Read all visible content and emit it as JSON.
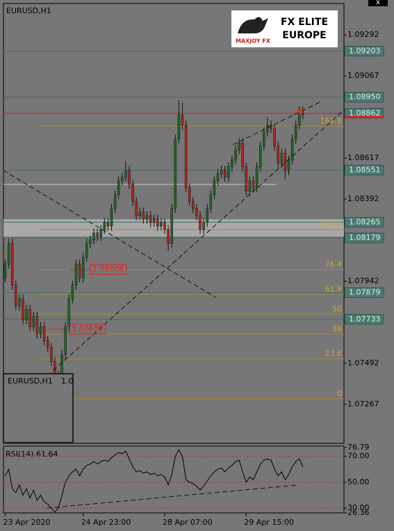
{
  "header": {
    "symbol": "EURUSD,H1",
    "logo_title": "FX ELITE",
    "logo_subtitle": "EUROPE",
    "logo_brand": "MAXJOY FX",
    "close": "x"
  },
  "inset": {
    "symbol": "EURUSD,H1",
    "value": "1.0"
  },
  "chart_data": [
    {
      "type": "candlestick",
      "up_color": "#1e6b2a",
      "down_color": "#b3261e",
      "ylim": [
        1.07053,
        1.09464
      ],
      "yticks": [
        1.09292,
        1.09067,
        1.08617,
        1.08392,
        1.07942,
        1.07492,
        1.07267
      ],
      "levels": [
        1.09203,
        1.0895,
        1.08862,
        1.08551,
        1.08265,
        1.08179,
        1.07879,
        1.07733
      ],
      "level_labels": [
        "1.09203",
        "1.08950",
        "1.08862",
        "1.08551",
        "1.08265",
        "1.08179",
        "1.07879",
        "1.07733"
      ],
      "bid": 1.08862,
      "price_tags": [
        1.08006,
        1.07679
      ],
      "fib": [
        {
          "label": "161.8",
          "price": 1.08792
        },
        {
          "label": "100.0",
          "price": 1.08224
        },
        {
          "label": "76.4",
          "price": 1.08005
        },
        {
          "label": "61.8",
          "price": 1.0787
        },
        {
          "label": "50",
          "price": 1.07761
        },
        {
          "label": "38",
          "price": 1.07652
        },
        {
          "label": "23.6",
          "price": 1.07516
        },
        {
          "label": "0",
          "price": 1.07298
        }
      ],
      "categories": [
        "23 Apr 2020",
        null,
        null,
        null,
        null,
        null,
        null,
        null,
        null,
        null,
        null,
        null,
        null,
        null,
        null,
        null,
        null,
        null,
        null,
        null,
        null,
        null,
        "24 Apr 23:00",
        null,
        null,
        null,
        null,
        null,
        null,
        null,
        null,
        null,
        null,
        null,
        null,
        null,
        null,
        null,
        null,
        null,
        null,
        null,
        null,
        null,
        null,
        "28 Apr 07:00",
        null,
        null,
        null,
        null,
        null,
        null,
        null,
        null,
        null,
        null,
        null,
        null,
        null,
        null,
        null,
        null,
        null,
        null,
        null,
        null,
        null,
        null,
        "29 Apr 15:00",
        null,
        null,
        null,
        null,
        null,
        null,
        null,
        null,
        null,
        null,
        null,
        null,
        null,
        null,
        null,
        null
      ],
      "ohlc": [
        [
          1.07959,
          1.0806,
          1.07934,
          1.08035
        ],
        [
          1.08035,
          1.08174,
          1.0801,
          1.08149
        ],
        [
          1.08149,
          1.08174,
          1.07895,
          1.0792
        ],
        [
          1.0792,
          1.07945,
          1.07781,
          1.07806
        ],
        [
          1.07806,
          1.07869,
          1.07781,
          1.07844
        ],
        [
          1.07844,
          1.07869,
          1.07705,
          1.0773
        ],
        [
          1.0773,
          1.07812,
          1.07705,
          1.07787
        ],
        [
          1.07787,
          1.07812,
          1.07667,
          1.07692
        ],
        [
          1.07692,
          1.07774,
          1.07667,
          1.07749
        ],
        [
          1.07749,
          1.07774,
          1.07629,
          1.07654
        ],
        [
          1.07654,
          1.07717,
          1.07629,
          1.07692
        ],
        [
          1.07692,
          1.07717,
          1.07591,
          1.07616
        ],
        [
          1.07616,
          1.07641,
          1.07553,
          1.07578
        ],
        [
          1.07578,
          1.07603,
          1.07476,
          1.07501
        ],
        [
          1.07501,
          1.07526,
          1.0733,
          1.07406
        ],
        [
          1.07406,
          1.0745,
          1.07381,
          1.07425
        ],
        [
          1.07425,
          1.07564,
          1.074,
          1.07539
        ],
        [
          1.07539,
          1.07717,
          1.07514,
          1.07692
        ],
        [
          1.07692,
          1.07869,
          1.07667,
          1.07844
        ],
        [
          1.07844,
          1.07945,
          1.07819,
          1.0792
        ],
        [
          1.0792,
          1.0806,
          1.07895,
          1.08035
        ],
        [
          1.08035,
          1.0806,
          1.07934,
          1.07959
        ],
        [
          1.07959,
          1.08098,
          1.07934,
          1.08073
        ],
        [
          1.08073,
          1.08174,
          1.08048,
          1.08149
        ],
        [
          1.08149,
          1.08193,
          1.08124,
          1.08168
        ],
        [
          1.08168,
          1.08231,
          1.08143,
          1.08206
        ],
        [
          1.08206,
          1.08231,
          1.08162,
          1.08187
        ],
        [
          1.08187,
          1.0825,
          1.08162,
          1.08225
        ],
        [
          1.08225,
          1.08288,
          1.082,
          1.08263
        ],
        [
          1.08263,
          1.08288,
          1.08219,
          1.08244
        ],
        [
          1.08244,
          1.08365,
          1.08219,
          1.0834
        ],
        [
          1.0834,
          1.08441,
          1.08315,
          1.08416
        ],
        [
          1.08416,
          1.08517,
          1.08391,
          1.08492
        ],
        [
          1.08492,
          1.08536,
          1.08467,
          1.08511
        ],
        [
          1.08511,
          1.086,
          1.08486,
          1.08549
        ],
        [
          1.08549,
          1.08574,
          1.08448,
          1.08473
        ],
        [
          1.08473,
          1.08498,
          1.08353,
          1.08378
        ],
        [
          1.08378,
          1.08403,
          1.08276,
          1.08301
        ],
        [
          1.08301,
          1.08345,
          1.08276,
          1.0832
        ],
        [
          1.0832,
          1.08345,
          1.08257,
          1.08282
        ],
        [
          1.08282,
          1.08326,
          1.08257,
          1.08301
        ],
        [
          1.08301,
          1.08326,
          1.08238,
          1.08263
        ],
        [
          1.08263,
          1.08307,
          1.08238,
          1.08282
        ],
        [
          1.08282,
          1.08307,
          1.08219,
          1.08244
        ],
        [
          1.08244,
          1.08288,
          1.08219,
          1.08263
        ],
        [
          1.08263,
          1.08288,
          1.082,
          1.08225
        ],
        [
          1.08225,
          1.0825,
          1.0811,
          1.08149
        ],
        [
          1.08149,
          1.08365,
          1.08124,
          1.0834
        ],
        [
          1.0834,
          1.08746,
          1.08315,
          1.08721
        ],
        [
          1.08721,
          1.0893,
          1.08696,
          1.08854
        ],
        [
          1.08854,
          1.0892,
          1.08772,
          1.08797
        ],
        [
          1.08797,
          1.08822,
          1.08429,
          1.08454
        ],
        [
          1.08454,
          1.08479,
          1.08353,
          1.08378
        ],
        [
          1.08378,
          1.08403,
          1.08315,
          1.0834
        ],
        [
          1.0834,
          1.08365,
          1.08276,
          1.08301
        ],
        [
          1.08301,
          1.08326,
          1.082,
          1.08225
        ],
        [
          1.08225,
          1.08288,
          1.082,
          1.08263
        ],
        [
          1.08263,
          1.08365,
          1.08238,
          1.0834
        ],
        [
          1.0834,
          1.08441,
          1.08315,
          1.08416
        ],
        [
          1.08416,
          1.08517,
          1.08391,
          1.08492
        ],
        [
          1.08492,
          1.08555,
          1.08467,
          1.0853
        ],
        [
          1.0853,
          1.08574,
          1.08505,
          1.08549
        ],
        [
          1.08549,
          1.08574,
          1.08486,
          1.08511
        ],
        [
          1.08511,
          1.08593,
          1.08486,
          1.08568
        ],
        [
          1.08568,
          1.08631,
          1.08543,
          1.08606
        ],
        [
          1.08606,
          1.08688,
          1.08581,
          1.08663
        ],
        [
          1.08663,
          1.08726,
          1.08638,
          1.08701
        ],
        [
          1.08701,
          1.08726,
          1.08543,
          1.08568
        ],
        [
          1.08568,
          1.08593,
          1.0841,
          1.08435
        ],
        [
          1.08435,
          1.08517,
          1.0841,
          1.08492
        ],
        [
          1.08492,
          1.08517,
          1.08429,
          1.08454
        ],
        [
          1.08454,
          1.08593,
          1.08429,
          1.08568
        ],
        [
          1.08568,
          1.08707,
          1.08543,
          1.08682
        ],
        [
          1.08682,
          1.08784,
          1.08657,
          1.08759
        ],
        [
          1.08759,
          1.0884,
          1.08734,
          1.08797
        ],
        [
          1.08797,
          1.08822,
          1.08753,
          1.08778
        ],
        [
          1.08778,
          1.08803,
          1.08657,
          1.08682
        ],
        [
          1.08682,
          1.08707,
          1.08562,
          1.08587
        ],
        [
          1.08587,
          1.08669,
          1.08562,
          1.08644
        ],
        [
          1.08644,
          1.08669,
          1.085,
          1.08549
        ],
        [
          1.08549,
          1.08631,
          1.08524,
          1.08606
        ],
        [
          1.08606,
          1.08746,
          1.08581,
          1.08721
        ],
        [
          1.08721,
          1.08822,
          1.08696,
          1.08797
        ],
        [
          1.08797,
          1.089,
          1.08772,
          1.08854
        ],
        [
          1.08854,
          1.089,
          1.08829,
          1.08861
        ]
      ]
    },
    {
      "type": "line",
      "title": "RSI(14) 61.64",
      "color": "#000000",
      "ylim": [
        26.36,
        76.79
      ],
      "yticks": [
        76.79,
        {
          "value": 70,
          "label": "70.00"
        },
        {
          "value": 50,
          "label": "50.00"
        },
        {
          "value": 30,
          "label": "30.00"
        },
        26.36
      ],
      "levels": [
        70,
        50,
        30
      ],
      "values": [
        55,
        60,
        45,
        42,
        48,
        40,
        45,
        38,
        44,
        36,
        40,
        35,
        33,
        30,
        27,
        30,
        40,
        50,
        55,
        58,
        60,
        55,
        60,
        63,
        64,
        66,
        64,
        66,
        67,
        66,
        69,
        71,
        73,
        72,
        74,
        68,
        62,
        58,
        59,
        57,
        58,
        56,
        57,
        55,
        56,
        54,
        48,
        56,
        70,
        75,
        70,
        52,
        50,
        49,
        47,
        44,
        47,
        51,
        55,
        58,
        60,
        61,
        58,
        61,
        63,
        66,
        67,
        58,
        50,
        54,
        52,
        58,
        64,
        67,
        68,
        67,
        60,
        55,
        58,
        52,
        56,
        62,
        66,
        68,
        61.64
      ]
    }
  ]
}
